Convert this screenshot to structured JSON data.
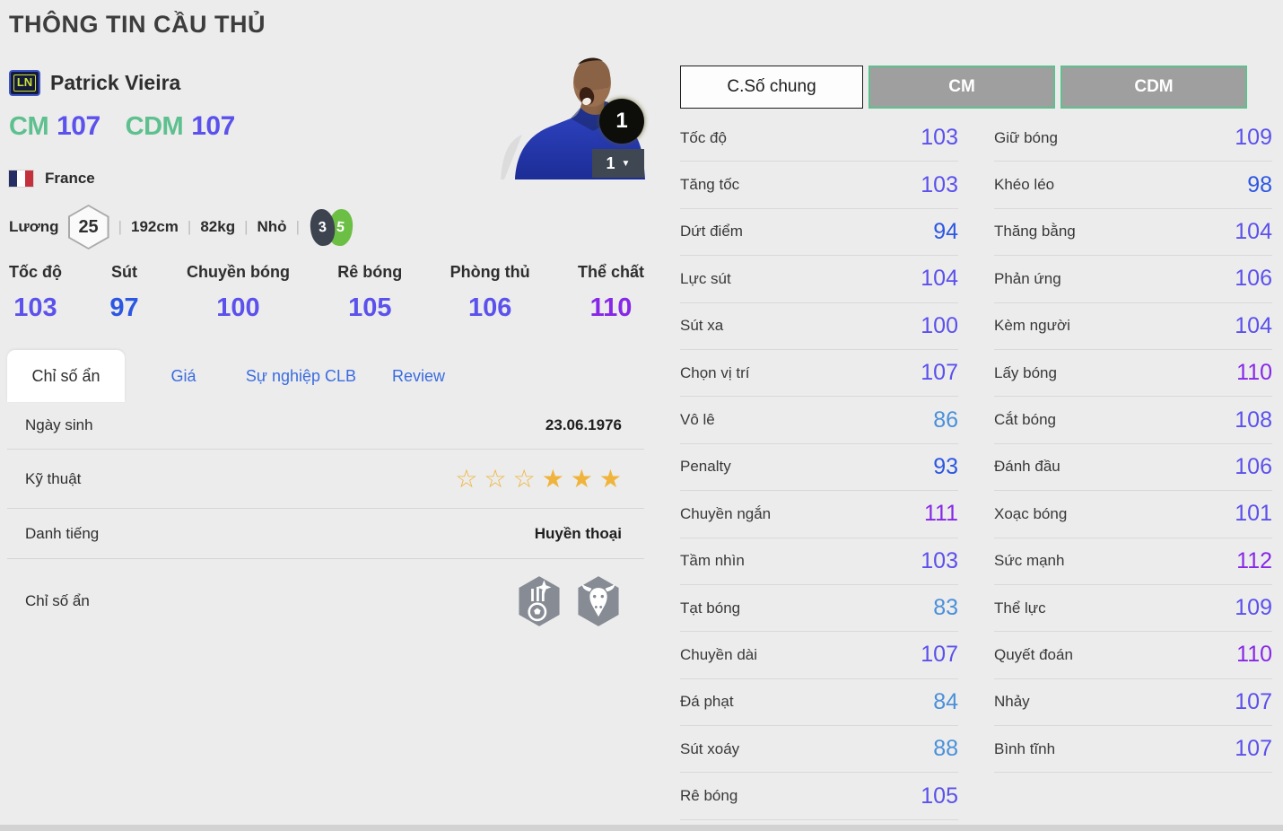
{
  "page_title": "THÔNG TIN CẦU THỦ",
  "player": {
    "season_badge": "LN",
    "name": "Patrick Vieira",
    "positions": [
      {
        "label": "CM",
        "value": 107
      },
      {
        "label": "CDM",
        "value": 107
      }
    ],
    "nation": "France",
    "salary_label": "Lương",
    "salary": "25",
    "height": "192cm",
    "weight": "82kg",
    "body_type": "Nhỏ",
    "separator": "|",
    "weak_foot": "3",
    "skill_moves": "5",
    "upgrade_level": "1",
    "level_dropdown": "1"
  },
  "summary_stats": [
    {
      "label": "Tốc độ",
      "value": 103
    },
    {
      "label": "Sút",
      "value": 97
    },
    {
      "label": "Chuyền bóng",
      "value": 100
    },
    {
      "label": "Rê bóng",
      "value": 105
    },
    {
      "label": "Phòng thủ",
      "value": 106
    },
    {
      "label": "Thể chất",
      "value": 110
    }
  ],
  "tabs": [
    {
      "label": "Chỉ số ẩn",
      "active": true
    },
    {
      "label": "Giá",
      "active": false
    },
    {
      "label": "Sự nghiệp CLB",
      "active": false
    },
    {
      "label": "Review",
      "active": false
    }
  ],
  "info_rows": {
    "birthdate": {
      "label": "Ngày sinh",
      "value": "23.06.1976"
    },
    "skill": {
      "label": "Kỹ thuật",
      "stars": [
        0,
        0,
        0,
        1,
        1,
        1
      ]
    },
    "reputation": {
      "label": "Danh tiếng",
      "value": "Huyền thoại"
    },
    "hidden": {
      "label": "Chỉ số ẩn",
      "icons": [
        "comet-ball",
        "buffalo"
      ]
    }
  },
  "stat_panel": {
    "tabs": [
      {
        "label": "C.Số chung",
        "active": true
      },
      {
        "label": "CM",
        "active": false
      },
      {
        "label": "CDM",
        "active": false
      }
    ],
    "left": [
      {
        "label": "Tốc độ",
        "value": 103
      },
      {
        "label": "Tăng tốc",
        "value": 103
      },
      {
        "label": "Dứt điểm",
        "value": 94
      },
      {
        "label": "Lực sút",
        "value": 104
      },
      {
        "label": "Sút xa",
        "value": 100
      },
      {
        "label": "Chọn vị trí",
        "value": 107
      },
      {
        "label": "Vô lê",
        "value": 86
      },
      {
        "label": "Penalty",
        "value": 93
      },
      {
        "label": "Chuyền ngắn",
        "value": 111
      },
      {
        "label": "Tầm nhìn",
        "value": 103
      },
      {
        "label": "Tạt bóng",
        "value": 83
      },
      {
        "label": "Chuyền dài",
        "value": 107
      },
      {
        "label": "Đá phạt",
        "value": 84
      },
      {
        "label": "Sút xoáy",
        "value": 88
      },
      {
        "label": "Rê bóng",
        "value": 105
      }
    ],
    "right": [
      {
        "label": "Giữ bóng",
        "value": 109
      },
      {
        "label": "Khéo léo",
        "value": 98
      },
      {
        "label": "Thăng bằng",
        "value": 104
      },
      {
        "label": "Phản ứng",
        "value": 106
      },
      {
        "label": "Kèm người",
        "value": 104
      },
      {
        "label": "Lấy bóng",
        "value": 110
      },
      {
        "label": "Cắt bóng",
        "value": 108
      },
      {
        "label": "Đánh đầu",
        "value": 106
      },
      {
        "label": "Xoạc bóng",
        "value": 101
      },
      {
        "label": "Sức mạnh",
        "value": 112
      },
      {
        "label": "Thể lực",
        "value": 109
      },
      {
        "label": "Quyết đoán",
        "value": 110
      },
      {
        "label": "Nhảy",
        "value": 107
      },
      {
        "label": "Bình tĩnh",
        "value": 107
      }
    ]
  },
  "colors": {
    "tier_110": "#8727e8",
    "tier_100": "#5b51ec",
    "tier_90": "#2c57e2",
    "tier_80": "#4a90d9",
    "position_label": "#5ec08f",
    "tab_link": "#3b6ce0",
    "star": "#f0b43c",
    "flag_blue": "#252f63",
    "flag_red": "#c4303b"
  }
}
